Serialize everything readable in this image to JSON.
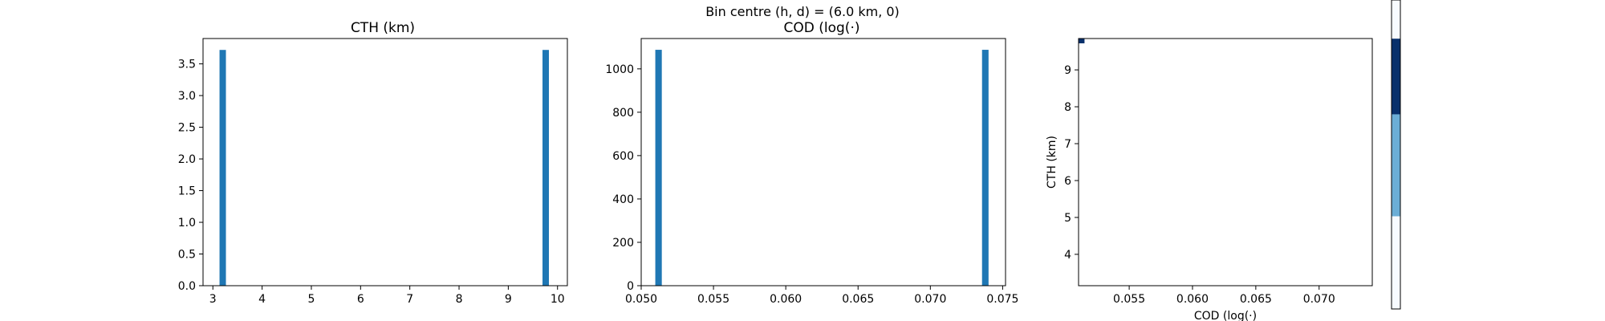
{
  "suptitle": "Bin centre (h, d) = (6.0 km, 0)",
  "bar_color": "#1f77b4",
  "chart_data": [
    {
      "type": "bar",
      "title": "CTH (km)",
      "xlabel": "",
      "ylabel": "",
      "xlim": [
        2.8,
        10.2
      ],
      "ylim": [
        0,
        3.9
      ],
      "xticks": [
        3,
        4,
        5,
        6,
        7,
        8,
        9,
        10
      ],
      "yticks": [
        0.0,
        0.5,
        1.0,
        1.5,
        2.0,
        2.5,
        3.0,
        3.5
      ],
      "ytick_decimals": 1,
      "bin_width": 0.13,
      "bars": [
        {
          "x": 3.2,
          "value": 3.72
        },
        {
          "x": 9.76,
          "value": 3.72
        }
      ]
    },
    {
      "type": "bar",
      "title": "COD (log(·)",
      "xlabel": "",
      "ylabel": "",
      "xlim": [
        0.05,
        0.0752
      ],
      "ylim": [
        0,
        1140
      ],
      "xticks": [
        0.05,
        0.055,
        0.06,
        0.065,
        0.07,
        0.075
      ],
      "xtick_decimals": 3,
      "yticks": [
        0,
        200,
        400,
        600,
        800,
        1000
      ],
      "ytick_decimals": 0,
      "bin_width": 0.00045,
      "bars": [
        {
          "x": 0.0512,
          "value": 1088
        },
        {
          "x": 0.0738,
          "value": 1088
        }
      ]
    },
    {
      "type": "heatmap",
      "title": "",
      "xlabel": "COD (log(·)",
      "ylabel": "CTH (km)",
      "xlim": [
        0.051,
        0.0742
      ],
      "ylim": [
        3.15,
        9.85
      ],
      "xticks": [
        0.055,
        0.06,
        0.065,
        0.07
      ],
      "xtick_decimals": 3,
      "yticks": [
        4,
        5,
        6,
        7,
        8,
        9
      ],
      "ytick_decimals": 0,
      "cells": [
        {
          "x0": 0.051,
          "x1": 0.05147,
          "y0": 9.72,
          "y1": 9.85,
          "color": "#08306b"
        }
      ],
      "colorbar": {
        "segments": [
          {
            "from": 0.0,
            "to": 0.3,
            "color": "#f7fbff"
          },
          {
            "from": 0.3,
            "to": 0.63,
            "color": "#6baed6"
          },
          {
            "from": 0.63,
            "to": 0.875,
            "color": "#08306b"
          },
          {
            "from": 0.875,
            "to": 1.0,
            "color": "#f7fbff"
          }
        ]
      }
    }
  ]
}
